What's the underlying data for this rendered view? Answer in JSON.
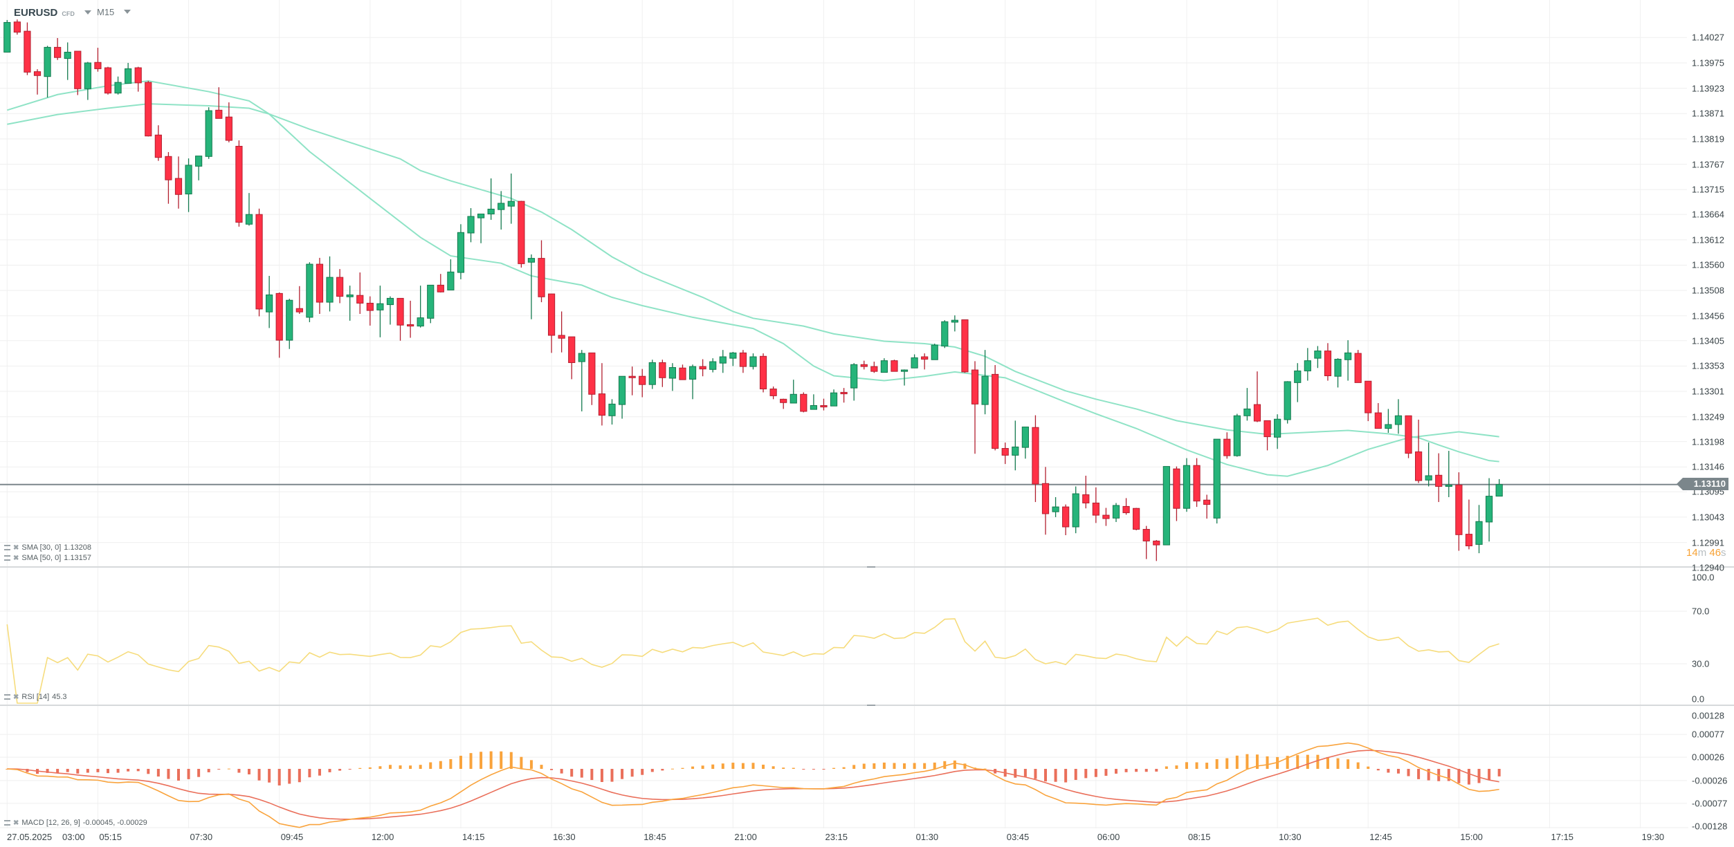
{
  "header": {
    "symbol": "EURUSD",
    "instrument_type": "CFD",
    "timeframe": "M15"
  },
  "price_axis": {
    "labels": [
      "1.14027",
      "1.13975",
      "1.13923",
      "1.13871",
      "1.13819",
      "1.13767",
      "1.13715",
      "1.13664",
      "1.13612",
      "1.13560",
      "1.13508",
      "1.13456",
      "1.13405",
      "1.13353",
      "1.13301",
      "1.13249",
      "1.13198",
      "1.13146",
      "1.13095",
      "1.13043",
      "1.12991",
      "1.12940"
    ]
  },
  "current_price": "1.13110",
  "countdown": {
    "minutes": "14",
    "m": "m",
    "seconds": "46",
    "s": "s"
  },
  "rsi_axis": {
    "labels": [
      "100.0",
      "70.0",
      "30.0",
      "0.0"
    ]
  },
  "macd_axis": {
    "labels": [
      "0.00128",
      "0.00077",
      "0.00026",
      "-0.00026",
      "-0.00077",
      "-0.00128"
    ]
  },
  "time_axis": {
    "labels": [
      "27.05.2025",
      "03:00",
      "05:15",
      "07:30",
      "09:45",
      "12:00",
      "14:15",
      "16:30",
      "18:45",
      "21:00",
      "23:15",
      "01:30",
      "03:45",
      "06:00",
      "08:15",
      "10:30",
      "12:45",
      "15:00",
      "17:15",
      "19:30"
    ]
  },
  "indicators": {
    "sma30": {
      "name": "SMA [30, 0]",
      "value": "1.13208"
    },
    "sma50": {
      "name": "SMA [50, 0]",
      "value": "1.13157"
    },
    "rsi": {
      "name": "RSI [14]",
      "value": "45.3"
    },
    "macd": {
      "name": "MACD [12, 26, 9]",
      "value": "-0.00045,  -0.00029"
    }
  },
  "colors": {
    "up": "#26b47a",
    "up_border": "#137a4e",
    "down": "#ff3146",
    "down_border": "#b21f2f",
    "sma": "#8fe3c6",
    "rsi": "#f6dc7c",
    "macd": "#f9a33c",
    "signal": "#ea6f5a",
    "hist_pos": "#f9a33c",
    "hist_neg": "#ea6f5a"
  },
  "chart_data": {
    "type": "candlestick",
    "title": "EURUSD CFD M15",
    "ylim": [
      1.1294,
      1.14027
    ],
    "fields": [
      "open",
      "high",
      "low",
      "close"
    ],
    "candles": [
      [
        1.13997,
        1.14063,
        1.13997,
        1.14058
      ],
      [
        1.14059,
        1.14064,
        1.14033,
        1.14038
      ],
      [
        1.1404,
        1.14058,
        1.1395,
        1.13956
      ],
      [
        1.13957,
        1.13962,
        1.1391,
        1.13949
      ],
      [
        1.13947,
        1.1401,
        1.13904,
        1.14007
      ],
      [
        1.14007,
        1.14026,
        1.13981,
        1.13986
      ],
      [
        1.13984,
        1.14017,
        1.1394,
        1.13997
      ],
      [
        1.13999,
        1.13999,
        1.13909,
        1.13922
      ],
      [
        1.13922,
        1.13977,
        1.13899,
        1.13975
      ],
      [
        1.13976,
        1.14006,
        1.13957,
        1.13963
      ],
      [
        1.13965,
        1.13967,
        1.1391,
        1.13913
      ],
      [
        1.13913,
        1.13947,
        1.1391,
        1.13935
      ],
      [
        1.13933,
        1.13975,
        1.13933,
        1.13963
      ],
      [
        1.13965,
        1.13967,
        1.13916,
        1.13934
      ],
      [
        1.13935,
        1.13938,
        1.13824,
        1.13825
      ],
      [
        1.13827,
        1.13847,
        1.13774,
        1.13781
      ],
      [
        1.13783,
        1.13792,
        1.13686,
        1.13735
      ],
      [
        1.13738,
        1.13783,
        1.13676,
        1.13705
      ],
      [
        1.13706,
        1.13779,
        1.13669,
        1.13765
      ],
      [
        1.13763,
        1.13784,
        1.13734,
        1.13784
      ],
      [
        1.13783,
        1.13884,
        1.13778,
        1.13877
      ],
      [
        1.13878,
        1.13925,
        1.13861,
        1.13861
      ],
      [
        1.13864,
        1.13894,
        1.13812,
        1.13816
      ],
      [
        1.13804,
        1.13816,
        1.13639,
        1.13648
      ],
      [
        1.13644,
        1.13708,
        1.13641,
        1.13664
      ],
      [
        1.13664,
        1.13676,
        1.13455,
        1.1347
      ],
      [
        1.13464,
        1.13538,
        1.13431,
        1.13499
      ],
      [
        1.13502,
        1.13504,
        1.1337,
        1.13406
      ],
      [
        1.13406,
        1.13491,
        1.13388,
        1.13488
      ],
      [
        1.13471,
        1.13517,
        1.1346,
        1.13464
      ],
      [
        1.13453,
        1.13566,
        1.13443,
        1.13562
      ],
      [
        1.13562,
        1.13575,
        1.1346,
        1.13484
      ],
      [
        1.13484,
        1.13578,
        1.13465,
        1.13535
      ],
      [
        1.13535,
        1.13552,
        1.13482,
        1.13496
      ],
      [
        1.13495,
        1.13518,
        1.13446,
        1.13499
      ],
      [
        1.13498,
        1.13545,
        1.1346,
        1.13482
      ],
      [
        1.13482,
        1.13496,
        1.13436,
        1.13467
      ],
      [
        1.13468,
        1.13518,
        1.13412,
        1.13481
      ],
      [
        1.13479,
        1.13496,
        1.13438,
        1.13492
      ],
      [
        1.13492,
        1.13492,
        1.13405,
        1.13437
      ],
      [
        1.13438,
        1.13487,
        1.13411,
        1.13435
      ],
      [
        1.13435,
        1.13518,
        1.13432,
        1.13452
      ],
      [
        1.13451,
        1.13519,
        1.13441,
        1.13519
      ],
      [
        1.13519,
        1.13542,
        1.13504,
        1.13505
      ],
      [
        1.13509,
        1.13572,
        1.13509,
        1.13546
      ],
      [
        1.13545,
        1.13644,
        1.13531,
        1.13627
      ],
      [
        1.13626,
        1.13677,
        1.13607,
        1.1366
      ],
      [
        1.13657,
        1.13665,
        1.13605,
        1.13665
      ],
      [
        1.13665,
        1.13738,
        1.13653,
        1.13675
      ],
      [
        1.13674,
        1.13712,
        1.13633,
        1.13687
      ],
      [
        1.13681,
        1.13748,
        1.13645,
        1.13691
      ],
      [
        1.13691,
        1.13692,
        1.13555,
        1.13563
      ],
      [
        1.13566,
        1.13582,
        1.13449,
        1.13574
      ],
      [
        1.13574,
        1.13611,
        1.13484,
        1.13495
      ],
      [
        1.13501,
        1.13501,
        1.1338,
        1.13416
      ],
      [
        1.13416,
        1.13465,
        1.13381,
        1.1341
      ],
      [
        1.13413,
        1.13413,
        1.13326,
        1.1336
      ],
      [
        1.13362,
        1.13386,
        1.1326,
        1.13379
      ],
      [
        1.1338,
        1.1338,
        1.13273,
        1.13295
      ],
      [
        1.13296,
        1.13359,
        1.13231,
        1.13252
      ],
      [
        1.13251,
        1.13285,
        1.13233,
        1.13275
      ],
      [
        1.13274,
        1.13332,
        1.13245,
        1.13332
      ],
      [
        1.13332,
        1.13352,
        1.13293,
        1.13329
      ],
      [
        1.13332,
        1.13347,
        1.13289,
        1.13315
      ],
      [
        1.13315,
        1.13366,
        1.13306,
        1.1336
      ],
      [
        1.1336,
        1.13366,
        1.1331,
        1.13329
      ],
      [
        1.13328,
        1.13359,
        1.13302,
        1.1335
      ],
      [
        1.13349,
        1.13356,
        1.13325,
        1.13325
      ],
      [
        1.13326,
        1.13356,
        1.13285,
        1.13352
      ],
      [
        1.13352,
        1.13367,
        1.13332,
        1.13347
      ],
      [
        1.13346,
        1.13369,
        1.1334,
        1.13362
      ],
      [
        1.13359,
        1.13386,
        1.13339,
        1.13372
      ],
      [
        1.13369,
        1.13382,
        1.13353,
        1.1338
      ],
      [
        1.1338,
        1.13386,
        1.13339,
        1.13352
      ],
      [
        1.13352,
        1.13379,
        1.13346,
        1.13372
      ],
      [
        1.13373,
        1.13379,
        1.13299,
        1.13306
      ],
      [
        1.13306,
        1.13311,
        1.13285,
        1.13292
      ],
      [
        1.13285,
        1.13286,
        1.13265,
        1.13278
      ],
      [
        1.13277,
        1.13325,
        1.13277,
        1.13295
      ],
      [
        1.13295,
        1.13299,
        1.13258,
        1.1326
      ],
      [
        1.13264,
        1.13295,
        1.13264,
        1.13272
      ],
      [
        1.13272,
        1.13286,
        1.13262,
        1.13269
      ],
      [
        1.13271,
        1.13305,
        1.13271,
        1.13298
      ],
      [
        1.13299,
        1.13308,
        1.13278,
        1.13296
      ],
      [
        1.13308,
        1.13359,
        1.13282,
        1.13356
      ],
      [
        1.13356,
        1.13364,
        1.13346,
        1.13352
      ],
      [
        1.13352,
        1.13362,
        1.13339,
        1.13342
      ],
      [
        1.1334,
        1.13369,
        1.1334,
        1.13364
      ],
      [
        1.13364,
        1.13366,
        1.13342,
        1.13342
      ],
      [
        1.13342,
        1.13346,
        1.13313,
        1.13345
      ],
      [
        1.13349,
        1.13377,
        1.13349,
        1.1337
      ],
      [
        1.13372,
        1.13379,
        1.13346,
        1.13367
      ],
      [
        1.13366,
        1.13399,
        1.13366,
        1.13396
      ],
      [
        1.13394,
        1.13447,
        1.1339,
        1.13444
      ],
      [
        1.13443,
        1.13457,
        1.13424,
        1.13447
      ],
      [
        1.13448,
        1.13448,
        1.13339,
        1.13341
      ],
      [
        1.13345,
        1.13363,
        1.13173,
        1.13275
      ],
      [
        1.13274,
        1.13386,
        1.13254,
        1.13332
      ],
      [
        1.13336,
        1.13355,
        1.1318,
        1.13184
      ],
      [
        1.13184,
        1.13196,
        1.13152,
        1.1317
      ],
      [
        1.1317,
        1.13241,
        1.13139,
        1.13187
      ],
      [
        1.13186,
        1.13228,
        1.13163,
        1.13228
      ],
      [
        1.13227,
        1.13252,
        1.13074,
        1.13111
      ],
      [
        1.13112,
        1.13146,
        1.13007,
        1.1305
      ],
      [
        1.13054,
        1.13084,
        1.13043,
        1.13064
      ],
      [
        1.13064,
        1.13069,
        1.13006,
        1.13023
      ],
      [
        1.13023,
        1.13106,
        1.1301,
        1.13091
      ],
      [
        1.13089,
        1.13128,
        1.13061,
        1.13072
      ],
      [
        1.13072,
        1.13104,
        1.13031,
        1.13047
      ],
      [
        1.13047,
        1.13062,
        1.13025,
        1.1304
      ],
      [
        1.13041,
        1.13072,
        1.13033,
        1.13067
      ],
      [
        1.13065,
        1.13082,
        1.13048,
        1.13052
      ],
      [
        1.13061,
        1.13062,
        1.13016,
        1.13018
      ],
      [
        1.13018,
        1.13025,
        1.12957,
        1.12994
      ],
      [
        1.12994,
        1.12996,
        1.12953,
        1.12986
      ],
      [
        1.12986,
        1.13147,
        1.12986,
        1.13147
      ],
      [
        1.13142,
        1.13147,
        1.13035,
        1.13061
      ],
      [
        1.13061,
        1.13164,
        1.13054,
        1.13149
      ],
      [
        1.13149,
        1.13164,
        1.13064,
        1.13076
      ],
      [
        1.13078,
        1.13089,
        1.1304,
        1.13069
      ],
      [
        1.13041,
        1.13203,
        1.1303,
        1.13203
      ],
      [
        1.13203,
        1.13217,
        1.13163,
        1.13169
      ],
      [
        1.13169,
        1.13255,
        1.13167,
        1.13251
      ],
      [
        1.13251,
        1.13308,
        1.13241,
        1.13265
      ],
      [
        1.13274,
        1.13342,
        1.13238,
        1.1324
      ],
      [
        1.13241,
        1.13241,
        1.1318,
        1.13208
      ],
      [
        1.13207,
        1.13254,
        1.13183,
        1.13244
      ],
      [
        1.13243,
        1.13322,
        1.13235,
        1.13321
      ],
      [
        1.13319,
        1.13359,
        1.13279,
        1.13343
      ],
      [
        1.13343,
        1.1339,
        1.13323,
        1.13364
      ],
      [
        1.13369,
        1.13394,
        1.13349,
        1.13384
      ],
      [
        1.13384,
        1.134,
        1.13323,
        1.13333
      ],
      [
        1.13332,
        1.13369,
        1.13309,
        1.13367
      ],
      [
        1.13366,
        1.13406,
        1.13323,
        1.1338
      ],
      [
        1.13379,
        1.13386,
        1.13319,
        1.13319
      ],
      [
        1.13322,
        1.13322,
        1.1324,
        1.13257
      ],
      [
        1.13257,
        1.13277,
        1.13225,
        1.13225
      ],
      [
        1.13225,
        1.13265,
        1.13216,
        1.13233
      ],
      [
        1.13233,
        1.13285,
        1.13214,
        1.13251
      ],
      [
        1.13251,
        1.13251,
        1.13164,
        1.13174
      ],
      [
        1.13177,
        1.13243,
        1.13113,
        1.13118
      ],
      [
        1.13119,
        1.13196,
        1.13106,
        1.13128
      ],
      [
        1.13129,
        1.13174,
        1.13074,
        1.13106
      ],
      [
        1.13106,
        1.13179,
        1.13084,
        1.13109
      ],
      [
        1.13109,
        1.13135,
        1.12974,
        1.13007
      ],
      [
        1.13008,
        1.13079,
        1.12977,
        1.12984
      ],
      [
        1.12987,
        1.13068,
        1.12969,
        1.13034
      ],
      [
        1.13033,
        1.13123,
        1.12993,
        1.13086
      ],
      [
        1.13086,
        1.13121,
        1.13086,
        1.1311
      ]
    ],
    "sma30": [
      [
        0,
        1.13878
      ],
      [
        5,
        1.1391
      ],
      [
        10,
        1.13928
      ],
      [
        14,
        1.13938
      ],
      [
        20,
        1.13916
      ],
      [
        24,
        1.13897
      ],
      [
        26,
        1.1387
      ],
      [
        30,
        1.13793
      ],
      [
        36,
        1.13697
      ],
      [
        41,
        1.13617
      ],
      [
        44,
        1.13579
      ],
      [
        49,
        1.13564
      ],
      [
        52,
        1.13538
      ],
      [
        57,
        1.13519
      ],
      [
        60,
        1.13494
      ],
      [
        63,
        1.13477
      ],
      [
        68,
        1.13453
      ],
      [
        74,
        1.1343
      ],
      [
        77,
        1.13399
      ],
      [
        80,
        1.13353
      ],
      [
        82,
        1.13333
      ],
      [
        87,
        1.13323
      ],
      [
        91,
        1.13332
      ],
      [
        94,
        1.13341
      ],
      [
        99,
        1.13329
      ],
      [
        105,
        1.13279
      ],
      [
        108,
        1.13255
      ],
      [
        112,
        1.13225
      ],
      [
        117,
        1.13181
      ],
      [
        121,
        1.13151
      ],
      [
        125,
        1.1313
      ],
      [
        127,
        1.13127
      ],
      [
        131,
        1.13149
      ],
      [
        135,
        1.13182
      ],
      [
        139,
        1.13206
      ],
      [
        144,
        1.13218
      ],
      [
        148,
        1.13208
      ]
    ],
    "sma50": [
      [
        0,
        1.13849
      ],
      [
        5,
        1.13869
      ],
      [
        10,
        1.13882
      ],
      [
        14,
        1.13891
      ],
      [
        20,
        1.13887
      ],
      [
        24,
        1.13882
      ],
      [
        26,
        1.1387
      ],
      [
        30,
        1.13839
      ],
      [
        39,
        1.13778
      ],
      [
        41,
        1.13754
      ],
      [
        44,
        1.13733
      ],
      [
        50,
        1.13697
      ],
      [
        53,
        1.13669
      ],
      [
        56,
        1.13633
      ],
      [
        60,
        1.13577
      ],
      [
        63,
        1.13544
      ],
      [
        69,
        1.13494
      ],
      [
        72,
        1.13465
      ],
      [
        74,
        1.13451
      ],
      [
        79,
        1.13435
      ],
      [
        82,
        1.13419
      ],
      [
        87,
        1.13404
      ],
      [
        91,
        1.13399
      ],
      [
        94,
        1.13392
      ],
      [
        97,
        1.13373
      ],
      [
        100,
        1.13342
      ],
      [
        105,
        1.13302
      ],
      [
        108,
        1.13285
      ],
      [
        112,
        1.13265
      ],
      [
        116,
        1.13241
      ],
      [
        121,
        1.13222
      ],
      [
        125,
        1.13213
      ],
      [
        128,
        1.13216
      ],
      [
        133,
        1.13221
      ],
      [
        137,
        1.13214
      ],
      [
        140,
        1.13206
      ],
      [
        142,
        1.13191
      ],
      [
        144,
        1.13177
      ],
      [
        147,
        1.13159
      ],
      [
        148,
        1.13157
      ]
    ],
    "rsi": {
      "period": 14,
      "ylim": [
        0,
        100
      ],
      "levels": [
        70,
        30
      ],
      "last": 45.3
    },
    "macd": {
      "fast": 12,
      "slow": 26,
      "signal": 9,
      "ylim": [
        -0.00128,
        0.00128
      ],
      "last_macd": -0.00045,
      "last_signal": -0.00029
    }
  }
}
